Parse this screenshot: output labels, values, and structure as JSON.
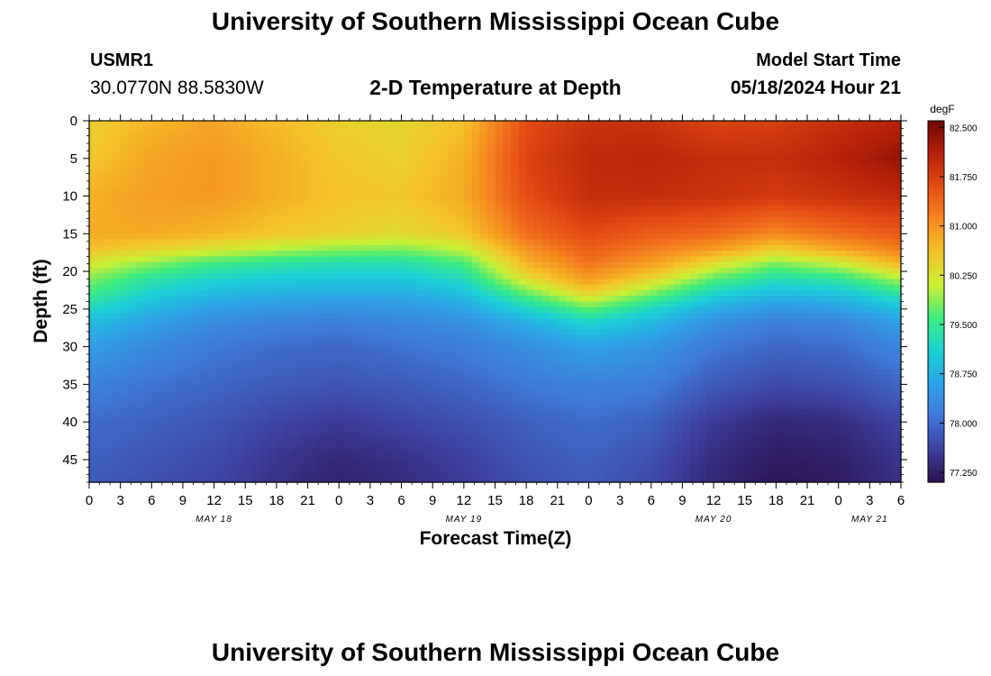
{
  "header": {
    "title": "University of Southern Mississippi Ocean Cube",
    "station_id": "USMR1",
    "coordinates": "30.0770N  88.5830W",
    "subtitle": "2-D Temperature at Depth",
    "model_start_label": "Model Start Time",
    "model_start_value": "05/18/2024 Hour 21"
  },
  "footer": {
    "title": "University of Southern Mississippi Ocean Cube"
  },
  "chart_data": {
    "type": "heatmap",
    "title": "2-D Temperature at Depth",
    "xlabel": "Forecast Time(Z)",
    "ylabel": "Depth (ft)",
    "x_range": [
      0,
      78
    ],
    "ylim": [
      0,
      48
    ],
    "x_tick_step_hours": 3,
    "x_tick_labels": [
      "0",
      "3",
      "6",
      "9",
      "12",
      "15",
      "18",
      "21",
      "0",
      "3",
      "6",
      "9",
      "12",
      "15",
      "18",
      "21",
      "0",
      "3",
      "6",
      "9",
      "12",
      "15",
      "18",
      "21",
      "0",
      "3",
      "6"
    ],
    "y_ticks": [
      0,
      5,
      10,
      15,
      20,
      25,
      30,
      35,
      40,
      45
    ],
    "y_tick_labels": [
      "0",
      "5",
      "10",
      "15",
      "20",
      "25",
      "30",
      "35",
      "40",
      "45"
    ],
    "date_labels": [
      {
        "label": "MAY 18",
        "hour": 12
      },
      {
        "label": "MAY 19",
        "hour": 36
      },
      {
        "label": "MAY 20",
        "hour": 60
      },
      {
        "label": "MAY 21",
        "hour": 75
      }
    ],
    "colorbar": {
      "units": "degF",
      "min": 77.1,
      "max": 82.6,
      "tick_values": [
        82.5,
        81.75,
        81.0,
        80.25,
        79.5,
        78.75,
        78.0,
        77.25
      ],
      "tick_labels": [
        "82.500",
        "81.750",
        "81.000",
        "80.250",
        "79.500",
        "78.750",
        "78.000",
        "77.250"
      ]
    },
    "colormap": [
      "#2c1250",
      "#3d3f9e",
      "#3f78d8",
      "#2ea3e8",
      "#1bd0d5",
      "#3eec7e",
      "#c9ef34",
      "#f5c22a",
      "#f6861f",
      "#e44d14",
      "#b7210a",
      "#6e0a05"
    ],
    "x_hours": [
      0,
      6,
      12,
      18,
      24,
      30,
      36,
      42,
      48,
      54,
      60,
      66,
      72,
      78
    ],
    "depths_ft": [
      0,
      5,
      10,
      15,
      17,
      19,
      21,
      23,
      25,
      27,
      30,
      35,
      40,
      45,
      48
    ],
    "temperature_degF": [
      [
        80.45,
        80.7,
        80.85,
        80.65,
        80.45,
        80.4,
        80.6,
        81.6,
        81.9,
        81.9,
        81.7,
        81.75,
        81.95,
        82.1
      ],
      [
        80.55,
        80.85,
        80.95,
        80.75,
        80.55,
        80.45,
        80.75,
        81.7,
        82.0,
        82.05,
        81.95,
        81.95,
        82.1,
        82.35
      ],
      [
        80.75,
        80.9,
        80.95,
        80.75,
        80.6,
        80.55,
        80.8,
        81.6,
        81.95,
        81.95,
        81.9,
        81.8,
        81.9,
        82.0
      ],
      [
        80.8,
        80.8,
        80.7,
        80.55,
        80.45,
        80.35,
        80.55,
        81.3,
        81.65,
        81.45,
        81.35,
        81.1,
        81.3,
        81.5
      ],
      [
        80.6,
        80.45,
        80.25,
        80.05,
        79.9,
        79.85,
        80.1,
        81.0,
        81.45,
        81.2,
        80.95,
        80.5,
        80.85,
        81.2
      ],
      [
        80.2,
        79.85,
        79.55,
        79.4,
        79.3,
        79.3,
        79.6,
        80.7,
        81.25,
        80.9,
        80.3,
        79.8,
        80.1,
        80.7
      ],
      [
        79.85,
        79.4,
        79.15,
        79.05,
        79.0,
        79.0,
        79.25,
        80.3,
        80.95,
        80.4,
        79.7,
        79.3,
        79.45,
        80.0
      ],
      [
        79.55,
        79.1,
        78.85,
        78.75,
        78.7,
        78.7,
        78.9,
        79.7,
        80.4,
        79.8,
        79.15,
        78.85,
        78.95,
        79.4
      ],
      [
        79.2,
        78.8,
        78.55,
        78.45,
        78.4,
        78.45,
        78.6,
        79.15,
        79.7,
        79.2,
        78.7,
        78.45,
        78.55,
        78.9
      ],
      [
        78.85,
        78.55,
        78.3,
        78.2,
        78.15,
        78.25,
        78.35,
        78.7,
        79.1,
        78.8,
        78.35,
        78.15,
        78.2,
        78.55
      ],
      [
        78.55,
        78.3,
        78.1,
        78.0,
        77.95,
        78.05,
        78.15,
        78.35,
        78.6,
        78.45,
        78.1,
        77.95,
        78.0,
        78.25
      ],
      [
        78.2,
        78.05,
        77.95,
        77.85,
        77.8,
        77.85,
        77.95,
        78.1,
        78.2,
        78.15,
        77.85,
        77.7,
        77.75,
        77.95
      ],
      [
        78.0,
        77.9,
        77.8,
        77.65,
        77.55,
        77.65,
        77.75,
        77.9,
        78.0,
        77.9,
        77.55,
        77.35,
        77.4,
        77.65
      ],
      [
        77.9,
        77.8,
        77.7,
        77.5,
        77.35,
        77.45,
        77.6,
        77.8,
        77.9,
        77.75,
        77.4,
        77.2,
        77.25,
        77.5
      ],
      [
        77.85,
        77.75,
        77.65,
        77.45,
        77.3,
        77.4,
        77.55,
        77.75,
        77.85,
        77.7,
        77.35,
        77.15,
        77.2,
        77.45
      ]
    ]
  }
}
